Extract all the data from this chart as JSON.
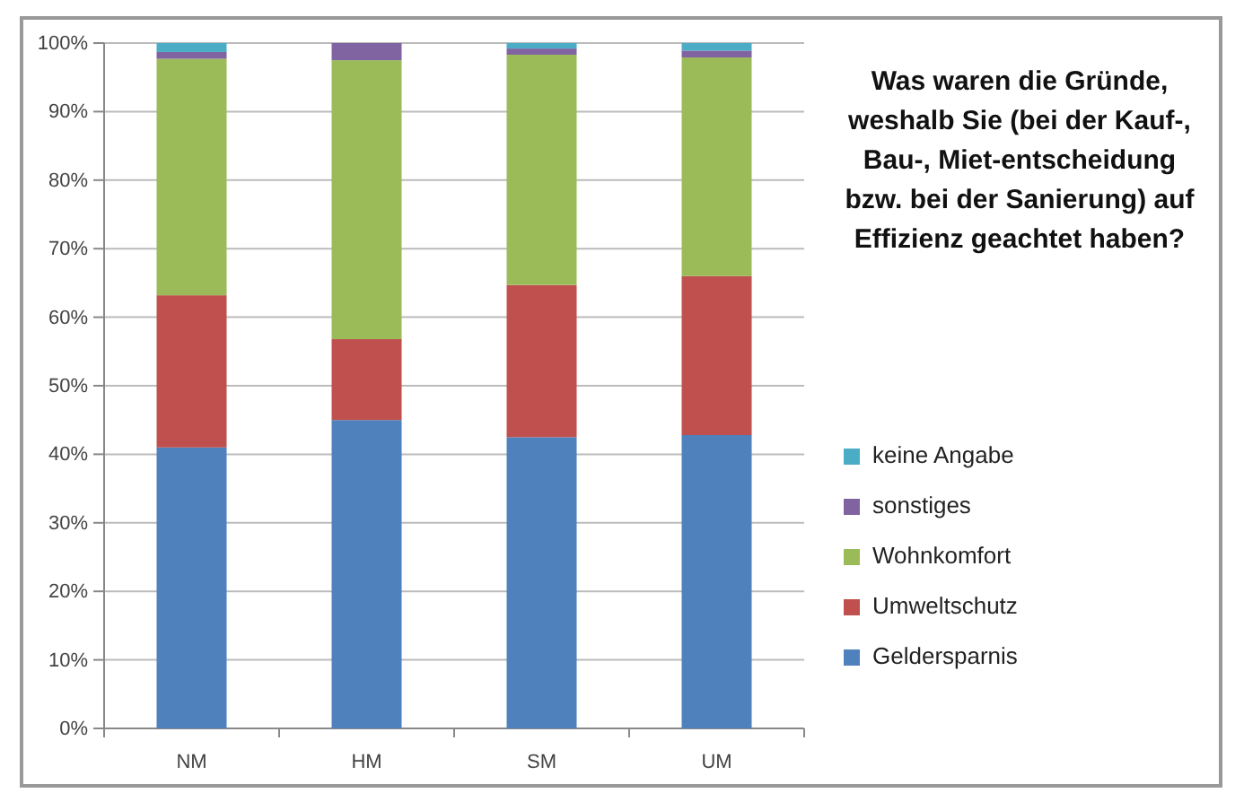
{
  "chart_data": {
    "type": "bar",
    "stacked": true,
    "title": "Was waren die Gründe, weshalb Sie (bei der Kauf-, Bau-, Miet-entscheidung bzw. bei der Sanierung) auf Effizienz geachtet haben?",
    "categories": [
      "NM",
      "HM",
      "SM",
      "UM"
    ],
    "series": [
      {
        "name": "Geldersparnis",
        "color": "#4f81bd",
        "values": [
          41,
          45,
          42.5,
          42.8
        ]
      },
      {
        "name": "Umweltschutz",
        "color": "#c0504d",
        "values": [
          22.2,
          11.8,
          22.2,
          23.2
        ]
      },
      {
        "name": "Wohnkomfort",
        "color": "#9bbb59",
        "values": [
          34.5,
          40.7,
          33.6,
          31.9
        ]
      },
      {
        "name": "sonstiges",
        "color": "#8064a2",
        "values": [
          1.0,
          2.5,
          0.9,
          1.0
        ]
      },
      {
        "name": "keine Angabe",
        "color": "#4bacc6",
        "values": [
          1.3,
          0,
          0.8,
          1.1
        ]
      }
    ],
    "ylim": [
      0,
      100
    ],
    "yticks": [
      {
        "value": 0,
        "label": "0%"
      },
      {
        "value": 10,
        "label": "10%"
      },
      {
        "value": 20,
        "label": "20%"
      },
      {
        "value": 30,
        "label": "30%"
      },
      {
        "value": 40,
        "label": "40%"
      },
      {
        "value": 50,
        "label": "50%"
      },
      {
        "value": 60,
        "label": "60%"
      },
      {
        "value": 70,
        "label": "70%"
      },
      {
        "value": 80,
        "label": "80%"
      },
      {
        "value": 90,
        "label": "90%"
      },
      {
        "value": 100,
        "label": "100%"
      }
    ],
    "grid": "y",
    "legend": "right"
  }
}
